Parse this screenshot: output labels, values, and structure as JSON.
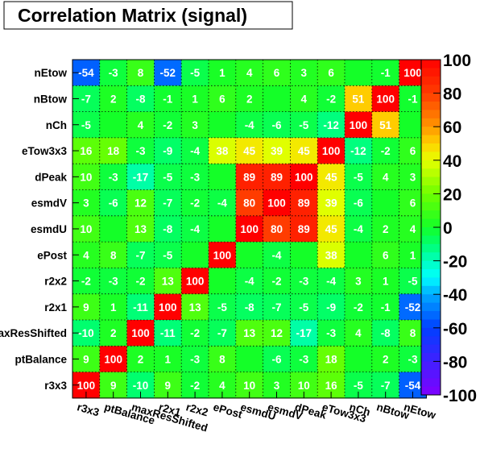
{
  "chart_data": {
    "type": "heatmap",
    "title": "Correlation Matrix (signal)",
    "x_labels": [
      "r3x3",
      "ptBalance",
      "maxResShifted",
      "r2x1",
      "r2x2",
      "ePost",
      "esmdU",
      "esmdV",
      "dPeak",
      "eTow3x3",
      "nCh",
      "nBtow",
      "nEtow"
    ],
    "y_labels": [
      "nEtow",
      "nBtow",
      "nCh",
      "eTow3x3",
      "dPeak",
      "esmdV",
      "esmdU",
      "ePost",
      "r2x2",
      "r2x1",
      "maxResShifted",
      "ptBalance",
      "r3x3"
    ],
    "y_labels_shown": [
      "nEtow",
      "nBtow",
      "nCh",
      "eTow3x3",
      "dPeak",
      "esmdV",
      "esmdU",
      "ePost",
      "r2x2",
      "r2x1",
      "axResShifted",
      "ptBalance",
      "r3x3"
    ],
    "values": [
      [
        -54,
        -3,
        8,
        -52,
        -5,
        1,
        4,
        6,
        3,
        6,
        0,
        -1,
        100
      ],
      [
        -7,
        2,
        -8,
        -1,
        1,
        6,
        2,
        0,
        4,
        -2,
        51,
        100,
        -1
      ],
      [
        -5,
        0,
        4,
        -2,
        3,
        0,
        -4,
        -6,
        -5,
        -12,
        100,
        51,
        0
      ],
      [
        16,
        18,
        -3,
        -9,
        -4,
        38,
        45,
        39,
        45,
        100,
        -12,
        -2,
        6
      ],
      [
        10,
        -3,
        -17,
        -5,
        -3,
        0,
        89,
        89,
        100,
        45,
        -5,
        4,
        3
      ],
      [
        3,
        -6,
        12,
        -7,
        -2,
        -4,
        80,
        100,
        89,
        39,
        -6,
        0,
        6
      ],
      [
        10,
        0,
        13,
        -8,
        -4,
        0,
        100,
        80,
        89,
        45,
        -4,
        2,
        4
      ],
      [
        4,
        8,
        -7,
        -5,
        0,
        100,
        0,
        -4,
        0,
        38,
        0,
        6,
        1
      ],
      [
        -2,
        -3,
        -2,
        13,
        100,
        0,
        -4,
        -2,
        -3,
        -4,
        3,
        1,
        -5
      ],
      [
        9,
        1,
        -11,
        100,
        13,
        -5,
        -8,
        -7,
        -5,
        -9,
        -2,
        -1,
        -52
      ],
      [
        -10,
        2,
        100,
        -11,
        -2,
        -7,
        13,
        12,
        -17,
        -3,
        4,
        -8,
        8
      ],
      [
        9,
        100,
        2,
        1,
        -3,
        8,
        0,
        -6,
        -3,
        18,
        0,
        2,
        -3
      ],
      [
        100,
        9,
        -10,
        9,
        -2,
        4,
        10,
        3,
        10,
        16,
        -5,
        -7,
        -54
      ]
    ],
    "blank_cells": [
      [
        0,
        10
      ],
      [
        1,
        7
      ],
      [
        2,
        1
      ],
      [
        2,
        5
      ],
      [
        2,
        12
      ],
      [
        4,
        5
      ],
      [
        5,
        11
      ],
      [
        6,
        1
      ],
      [
        6,
        5
      ],
      [
        7,
        4
      ],
      [
        7,
        6
      ],
      [
        7,
        8
      ],
      [
        7,
        10
      ],
      [
        8,
        5
      ],
      [
        11,
        6
      ],
      [
        11,
        10
      ]
    ],
    "zlim": [
      -100,
      100
    ],
    "colorbar_ticks": [
      "100",
      "80",
      "60",
      "40",
      "20",
      "0",
      "-20",
      "-40",
      "-60",
      "-80",
      "-100"
    ],
    "grid": true,
    "legend": "right colorbar"
  }
}
